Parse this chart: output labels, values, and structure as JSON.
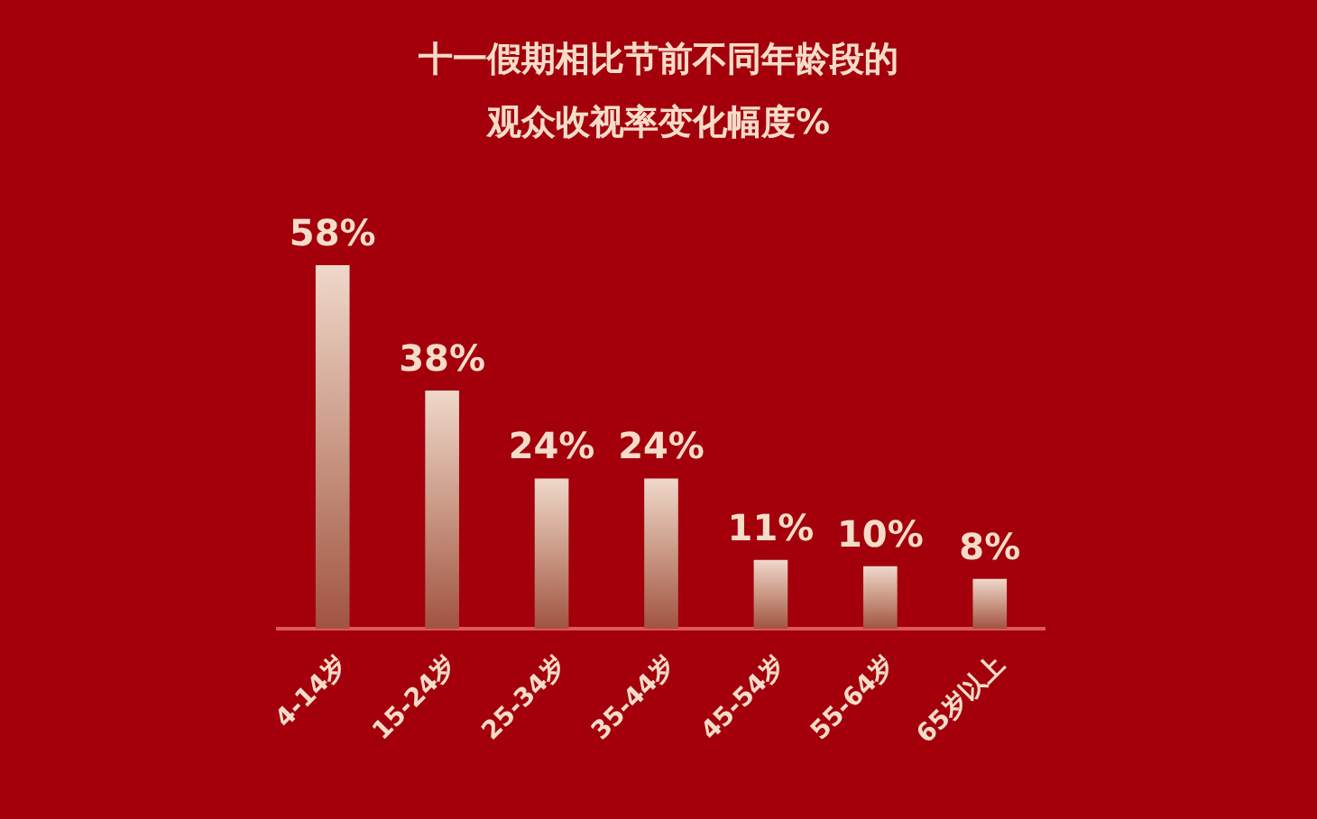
{
  "chart_data": {
    "type": "bar",
    "title": "十一假期相比节前不同年龄段的观众收视率变化幅度%",
    "categories": [
      "4-14岁",
      "15-24岁",
      "25-34岁",
      "35-44岁",
      "45-54岁",
      "55-64岁",
      "65岁以上"
    ],
    "values": [
      58,
      38,
      24,
      24,
      11,
      10,
      8
    ],
    "color": "#c99885",
    "value_labels": [
      "58%",
      "38%",
      "24%",
      "24%",
      "11%",
      "10%",
      "8%"
    ]
  }
}
